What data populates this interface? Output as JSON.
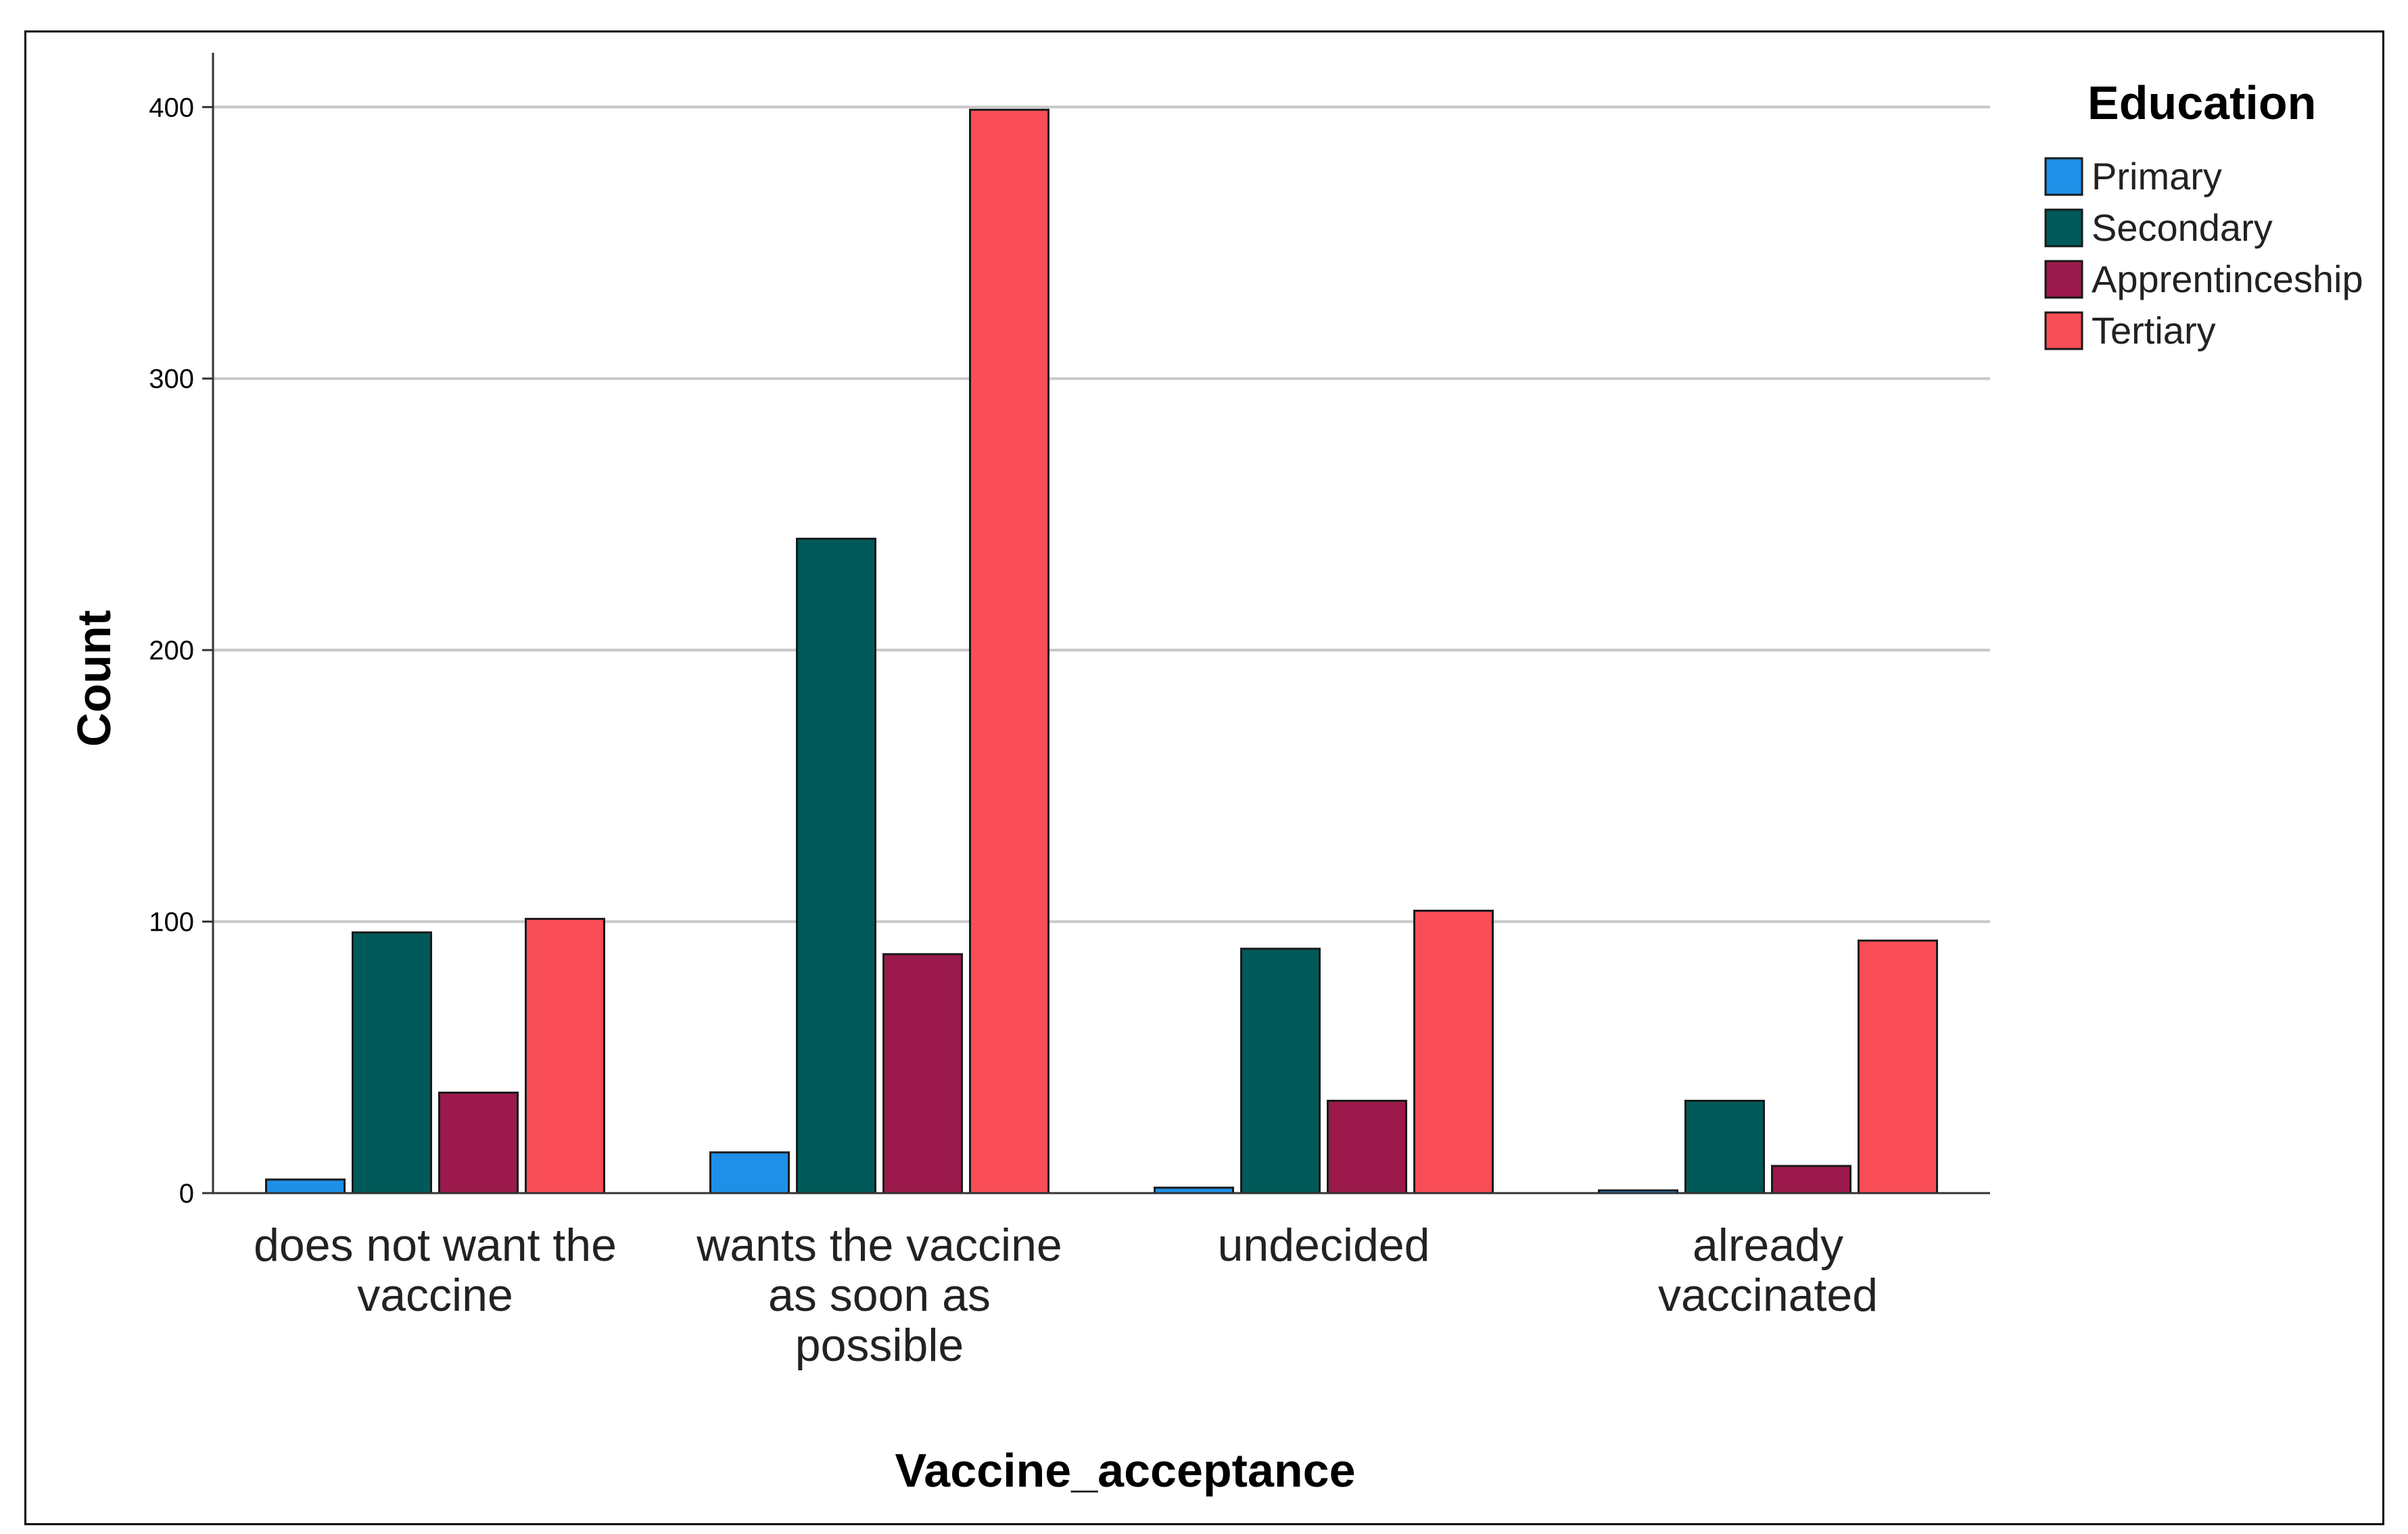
{
  "chart_data": {
    "type": "bar",
    "title": "",
    "xlabel": "Vaccine_acceptance",
    "ylabel": "Count",
    "ylim": [
      0,
      420
    ],
    "yticks": [
      0,
      100,
      200,
      300,
      400
    ],
    "grid": true,
    "categories": [
      [
        "does not want the",
        "vaccine"
      ],
      [
        "wants the vaccine",
        "as soon as",
        "possible"
      ],
      [
        "undecided"
      ],
      [
        "already",
        "vaccinated"
      ]
    ],
    "legend": {
      "title": "Education",
      "position": "top-right"
    },
    "series": [
      {
        "name": "Primary",
        "color": "#1e90e8",
        "values": [
          5,
          15,
          2,
          1
        ]
      },
      {
        "name": "Secondary",
        "color": "#005a5a",
        "values": [
          96,
          241,
          90,
          34
        ]
      },
      {
        "name": "Apprentinceship",
        "color": "#9b1a4b",
        "values": [
          37,
          88,
          34,
          10
        ]
      },
      {
        "name": "Tertiary",
        "color": "#f94e57",
        "values": [
          101,
          399,
          104,
          93
        ]
      }
    ]
  }
}
